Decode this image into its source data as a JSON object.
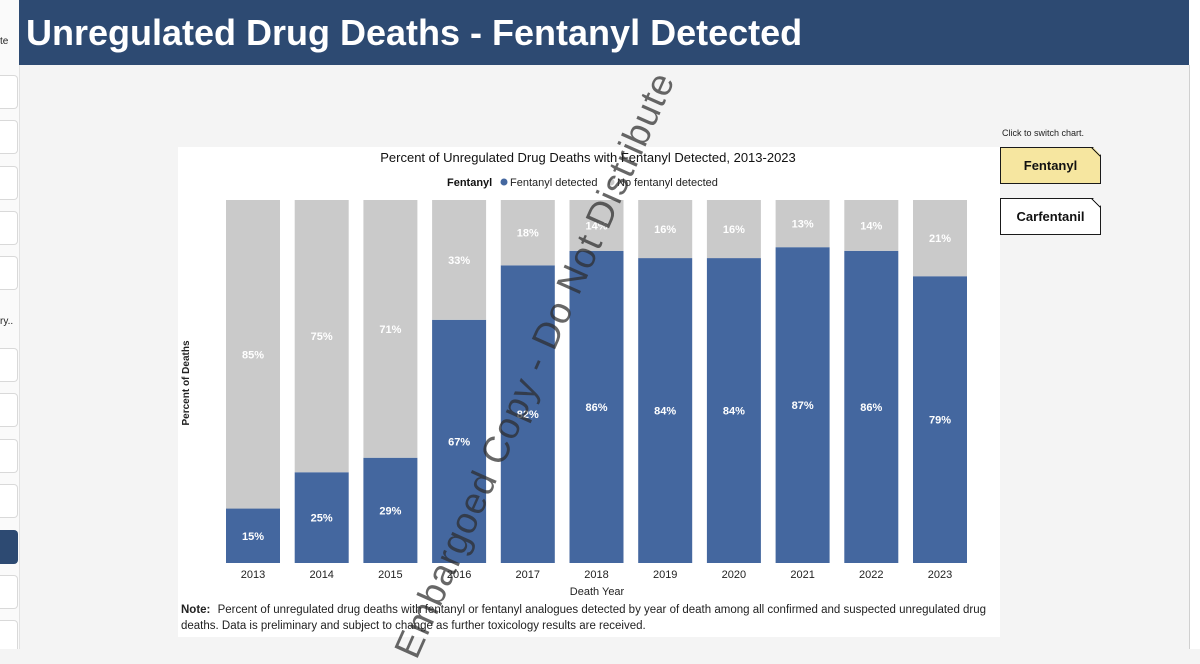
{
  "header": {
    "title": "Unregulated Drug Deaths - Fentanyl Detected"
  },
  "left_rail": {
    "fragment_top": "te",
    "fragment_mid": "ry.."
  },
  "switch": {
    "hint": "Click to switch chart.",
    "options": [
      "Fentanyl",
      "Carfentanil"
    ],
    "selected": "Fentanyl"
  },
  "watermark": "Embargoed Copy - Do Not Distribute",
  "colors": {
    "fentanyl": "#44679f",
    "no_fentanyl": "#cacaca",
    "header": "#2d4a72",
    "selected_button": "#f6e6a0"
  },
  "chart_data": {
    "type": "bar",
    "stacked": true,
    "title": "Percent of Unregulated Drug Deaths with Fentanyl Detected, 2013-2023",
    "legend_title": "Fentanyl",
    "legend_placement": "top-center",
    "xlabel": "Death Year",
    "ylabel": "Percent of Deaths",
    "ylim": [
      0,
      100
    ],
    "grid": false,
    "categories": [
      "2013",
      "2014",
      "2015",
      "2016",
      "2017",
      "2018",
      "2019",
      "2020",
      "2021",
      "2022",
      "2023"
    ],
    "series": [
      {
        "name": "Fentanyl detected",
        "color": "#44679f",
        "values": [
          15,
          25,
          29,
          67,
          82,
          86,
          84,
          84,
          87,
          86,
          79
        ],
        "labels": [
          "15%",
          "25%",
          "29%",
          "67%",
          "82%",
          "86%",
          "84%",
          "84%",
          "87%",
          "86%",
          "79%"
        ]
      },
      {
        "name": "No fentanyl detected",
        "color": "#cacaca",
        "values": [
          85,
          75,
          71,
          33,
          18,
          14,
          16,
          16,
          13,
          14,
          21
        ],
        "labels": [
          "85%",
          "75%",
          "71%",
          "33%",
          "18%",
          "14%",
          "16%",
          "16%",
          "13%",
          "14%",
          "21%"
        ]
      }
    ]
  },
  "note": {
    "label": "Note:",
    "text": "Percent of unregulated drug deaths with fentanyl or fentanyl analogues detected by year of death among all confirmed and suspected unregulated drug deaths. Data is preliminary and subject to change as further toxicology results are received."
  }
}
